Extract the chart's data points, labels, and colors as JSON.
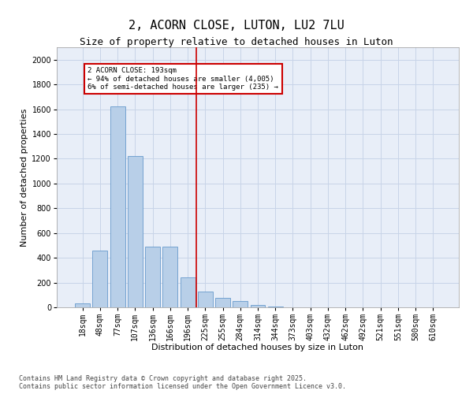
{
  "title": "2, ACORN CLOSE, LUTON, LU2 7LU",
  "subtitle": "Size of property relative to detached houses in Luton",
  "xlabel": "Distribution of detached houses by size in Luton",
  "ylabel": "Number of detached properties",
  "categories": [
    "18sqm",
    "48sqm",
    "77sqm",
    "107sqm",
    "136sqm",
    "166sqm",
    "196sqm",
    "225sqm",
    "255sqm",
    "284sqm",
    "314sqm",
    "344sqm",
    "373sqm",
    "403sqm",
    "432sqm",
    "462sqm",
    "492sqm",
    "521sqm",
    "551sqm",
    "580sqm",
    "610sqm"
  ],
  "values": [
    30,
    460,
    1620,
    1220,
    490,
    490,
    240,
    130,
    75,
    50,
    20,
    5,
    0,
    0,
    0,
    0,
    0,
    0,
    0,
    0,
    0
  ],
  "bar_color": "#b8cfe8",
  "bar_edge_color": "#6699cc",
  "vline_color": "#cc0000",
  "annotation_text": "2 ACORN CLOSE: 193sqm\n← 94% of detached houses are smaller (4,005)\n6% of semi-detached houses are larger (235) →",
  "annotation_box_color": "#cc0000",
  "ylim": [
    0,
    2100
  ],
  "yticks": [
    0,
    200,
    400,
    600,
    800,
    1000,
    1200,
    1400,
    1600,
    1800,
    2000
  ],
  "grid_color": "#c8d4e8",
  "background_color": "#e8eef8",
  "footer_line1": "Contains HM Land Registry data © Crown copyright and database right 2025.",
  "footer_line2": "Contains public sector information licensed under the Open Government Licence v3.0.",
  "title_fontsize": 11,
  "subtitle_fontsize": 9,
  "axis_label_fontsize": 8,
  "tick_fontsize": 7,
  "footer_fontsize": 6
}
